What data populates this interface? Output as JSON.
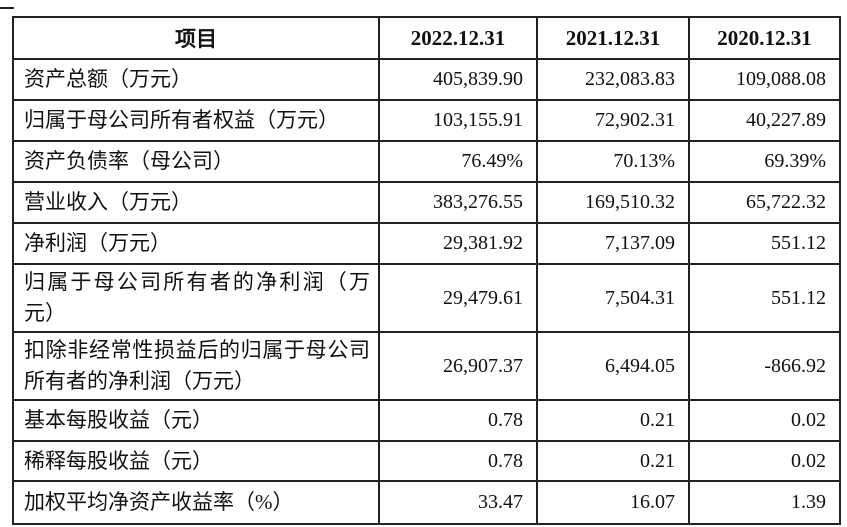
{
  "colors": {
    "border": "#222222",
    "text": "#111111",
    "background": "#ffffff"
  },
  "table": {
    "columns": [
      "项目",
      "2022.12.31",
      "2021.12.31",
      "2020.12.31"
    ],
    "rows": [
      {
        "label": "资产总额（万元）",
        "values": [
          "405,839.90",
          "232,083.83",
          "109,088.08"
        ]
      },
      {
        "label": "归属于母公司所有者权益（万元）",
        "values": [
          "103,155.91",
          "72,902.31",
          "40,227.89"
        ]
      },
      {
        "label": "资产负债率（母公司）",
        "values": [
          "76.49%",
          "70.13%",
          "69.39%"
        ]
      },
      {
        "label": "营业收入（万元）",
        "values": [
          "383,276.55",
          "169,510.32",
          "65,722.32"
        ]
      },
      {
        "label": "净利润（万元）",
        "values": [
          "29,381.92",
          "7,137.09",
          "551.12"
        ]
      },
      {
        "label": "归属于母公司所有者的净利润（万元）",
        "values": [
          "29,479.61",
          "7,504.31",
          "551.12"
        ]
      },
      {
        "label": "扣除非经常性损益后的归属于母公司所有者的净利润（万元）",
        "values": [
          "26,907.37",
          "6,494.05",
          "-866.92"
        ]
      },
      {
        "label": "基本每股收益（元）",
        "values": [
          "0.78",
          "0.21",
          "0.02"
        ]
      },
      {
        "label": "稀释每股收益（元）",
        "values": [
          "0.78",
          "0.21",
          "0.02"
        ]
      },
      {
        "label": "加权平均净资产收益率（%）",
        "values": [
          "33.47",
          "16.07",
          "1.39"
        ]
      }
    ]
  }
}
